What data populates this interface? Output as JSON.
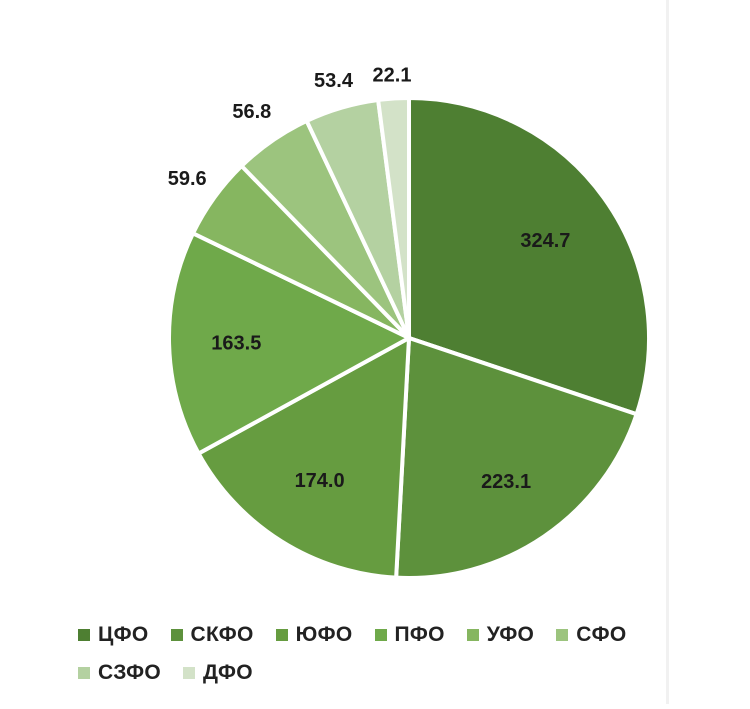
{
  "chart_data": {
    "type": "pie",
    "categories": [
      "ЦФО",
      "СКФО",
      "ЮФО",
      "ПФО",
      "УФО",
      "СФО",
      "СЗФО",
      "ДФО"
    ],
    "values": [
      324.7,
      223.1,
      174.0,
      163.5,
      59.6,
      56.8,
      53.4,
      22.1
    ],
    "labels": [
      "324.7",
      "223.1",
      "174.0",
      "163.5",
      "59.6",
      "56.8",
      "53.4",
      "22.1"
    ],
    "colors": [
      "#4e7f32",
      "#5d913c",
      "#669c40",
      "#6fa94a",
      "#86b660",
      "#9cc47e",
      "#b4d1a1",
      "#d3e2c8"
    ],
    "legend_position": "bottom",
    "start_angle_deg": 0,
    "direction": "clockwise"
  }
}
